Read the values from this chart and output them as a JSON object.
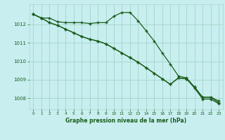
{
  "title": "Graphe pression niveau de la mer (hPa)",
  "bg_color": "#c8eef0",
  "grid_color": "#a8d8cc",
  "line_color": "#1a5c1a",
  "marker_color": "#1a5c1a",
  "xlim": [
    -0.5,
    23.5
  ],
  "ylim": [
    1007.4,
    1013.1
  ],
  "yticks": [
    1008,
    1009,
    1010,
    1011,
    1012
  ],
  "xticks": [
    0,
    1,
    2,
    3,
    4,
    5,
    6,
    7,
    8,
    9,
    10,
    11,
    12,
    13,
    14,
    15,
    16,
    17,
    18,
    19,
    20,
    21,
    22,
    23
  ],
  "series1": [
    1012.55,
    1012.35,
    1012.35,
    1012.15,
    1012.1,
    1012.1,
    1012.1,
    1012.05,
    1012.1,
    1012.1,
    1012.45,
    1012.65,
    1012.65,
    1012.2,
    1011.65,
    1011.1,
    1010.45,
    1009.85,
    1009.2,
    1009.1,
    1008.6,
    1008.05,
    1008.05,
    1007.85
  ],
  "series2": [
    1012.55,
    1012.35,
    1012.1,
    1011.95,
    1011.75,
    1011.55,
    1011.35,
    1011.2,
    1011.1,
    1010.95,
    1010.7,
    1010.45,
    1010.2,
    1009.95,
    1009.65,
    1009.35,
    1009.05,
    1008.75,
    1009.1,
    1009.05,
    1008.6,
    1008.05,
    1008.05,
    1007.75
  ],
  "series3": [
    1012.55,
    1012.35,
    1012.1,
    1011.95,
    1011.75,
    1011.55,
    1011.35,
    1011.2,
    1011.1,
    1010.95,
    1010.7,
    1010.45,
    1010.2,
    1009.95,
    1009.65,
    1009.35,
    1009.05,
    1008.75,
    1009.1,
    1009.05,
    1008.55,
    1007.95,
    1007.95,
    1007.7
  ]
}
